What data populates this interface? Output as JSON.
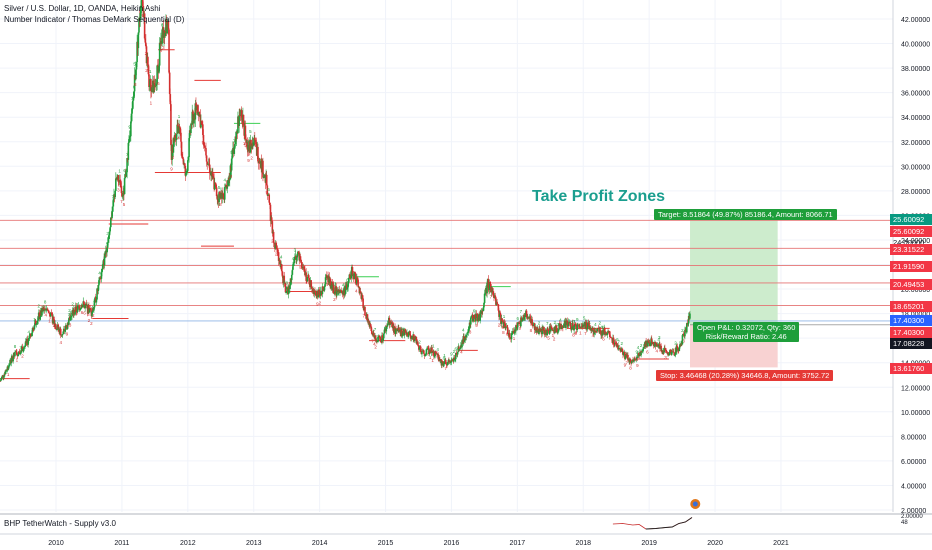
{
  "symbol_title": "Silver / U.S. Dollar, 1D, OANDA, Heikin Ashi",
  "indicator_title": "Number Indicator / Thomas DeMark Sequential (D)",
  "annotation": "Take Profit Zones",
  "target_label": "Target: 8.51864 (49.87%) 85186.4, Amount: 8066.71",
  "position_label_1": "Open P&L: 0.32072, Qty: 360",
  "position_label_2": "Risk/Reward Ratio: 2.46",
  "stop_label": "Stop: 3.46468 (20.28%) 34646.8, Amount: 3752.72",
  "sub_indicator": "BHP TetherWatch - Supply v3.0",
  "sub_axis_labels": [
    "2.00000",
    "48"
  ],
  "colors": {
    "up": "#26a69a",
    "down": "#ef5350",
    "green_bar": "#1e9e3a",
    "red_bar": "#d32f2f",
    "target_fill": "#cdeccd",
    "stop_fill": "#f8d2d2",
    "annotation": "#1a9e8f",
    "tag_green": "#089981",
    "tag_red": "#f23645"
  },
  "price_tags": [
    {
      "value": "25.60092",
      "color": "green"
    },
    {
      "value": "25.60092",
      "color": "red"
    },
    {
      "value": "24.00000",
      "color": "plain"
    },
    {
      "value": "23.31522",
      "color": "red"
    },
    {
      "value": "21.91590",
      "color": "red"
    },
    {
      "value": "20.49453",
      "color": "red"
    },
    {
      "value": "18.65201",
      "color": "red"
    },
    {
      "value": "17.40300",
      "color": "blue"
    },
    {
      "value": "17.40300",
      "color": "red"
    },
    {
      "value": "17.08228",
      "color": "dark"
    },
    {
      "value": "13.61760",
      "color": "red"
    }
  ],
  "chart_data": {
    "type": "candlestick",
    "ylim": [
      0,
      43.5
    ],
    "y_ticks": [
      "2.00000",
      "4.00000",
      "6.00000",
      "8.00000",
      "10.00000",
      "12.00000",
      "14.00000",
      "16.00000",
      "18.00000",
      "20.00000",
      "22.00000",
      "24.00000",
      "26.00000",
      "28.00000",
      "30.00000",
      "32.00000",
      "34.00000",
      "36.00000",
      "38.00000",
      "40.00000",
      "42.00000"
    ],
    "y_tick_values": [
      2,
      4,
      6,
      8,
      10,
      12,
      14,
      16,
      18,
      20,
      22,
      24,
      26,
      28,
      30,
      32,
      34,
      36,
      38,
      40,
      42
    ],
    "x_ticks": [
      "2010",
      "2011",
      "2012",
      "2013",
      "2014",
      "2015",
      "2016",
      "2017",
      "2018",
      "2019",
      "2020",
      "2021"
    ],
    "x_tick_values": [
      2010,
      2011,
      2012,
      2013,
      2014,
      2015,
      2016,
      2017,
      2018,
      2019,
      2020,
      2021
    ],
    "xlim": [
      2009.15,
      2022.7
    ],
    "price_path": [
      [
        2009.15,
        12.5
      ],
      [
        2009.35,
        14.5
      ],
      [
        2009.55,
        15.5
      ],
      [
        2009.7,
        17.5
      ],
      [
        2009.85,
        18.5
      ],
      [
        2010.0,
        17.0
      ],
      [
        2010.1,
        16.3
      ],
      [
        2010.25,
        18.0
      ],
      [
        2010.4,
        18.8
      ],
      [
        2010.55,
        18.0
      ],
      [
        2010.7,
        21.5
      ],
      [
        2010.8,
        24.5
      ],
      [
        2010.92,
        29.0
      ],
      [
        2011.02,
        27.5
      ],
      [
        2011.15,
        34.0
      ],
      [
        2011.3,
        44.5
      ],
      [
        2011.4,
        37.0
      ],
      [
        2011.5,
        36.0
      ],
      [
        2011.6,
        40.5
      ],
      [
        2011.7,
        41.5
      ],
      [
        2011.75,
        31.0
      ],
      [
        2011.85,
        33.5
      ],
      [
        2011.97,
        29.0
      ],
      [
        2012.05,
        33.5
      ],
      [
        2012.15,
        35.0
      ],
      [
        2012.3,
        30.5
      ],
      [
        2012.45,
        27.5
      ],
      [
        2012.6,
        28.0
      ],
      [
        2012.72,
        32.5
      ],
      [
        2012.8,
        34.5
      ],
      [
        2012.92,
        31.5
      ],
      [
        2013.0,
        32.0
      ],
      [
        2013.1,
        30.5
      ],
      [
        2013.2,
        28.5
      ],
      [
        2013.3,
        24.0
      ],
      [
        2013.4,
        22.0
      ],
      [
        2013.5,
        19.5
      ],
      [
        2013.65,
        23.0
      ],
      [
        2013.75,
        21.5
      ],
      [
        2013.9,
        20.0
      ],
      [
        2014.0,
        19.5
      ],
      [
        2014.12,
        21.0
      ],
      [
        2014.2,
        20.0
      ],
      [
        2014.35,
        19.5
      ],
      [
        2014.5,
        21.5
      ],
      [
        2014.6,
        20.0
      ],
      [
        2014.75,
        17.0
      ],
      [
        2014.85,
        16.0
      ],
      [
        2014.95,
        16.0
      ],
      [
        2015.05,
        17.5
      ],
      [
        2015.15,
        16.5
      ],
      [
        2015.3,
        16.5
      ],
      [
        2015.45,
        16.0
      ],
      [
        2015.55,
        14.8
      ],
      [
        2015.7,
        15.0
      ],
      [
        2015.85,
        14.0
      ],
      [
        2016.0,
        14.0
      ],
      [
        2016.15,
        15.5
      ],
      [
        2016.3,
        17.5
      ],
      [
        2016.45,
        17.8
      ],
      [
        2016.55,
        20.5
      ],
      [
        2016.65,
        19.5
      ],
      [
        2016.75,
        17.5
      ],
      [
        2016.9,
        16.0
      ],
      [
        2017.0,
        17.0
      ],
      [
        2017.15,
        18.0
      ],
      [
        2017.3,
        16.5
      ],
      [
        2017.45,
        16.6
      ],
      [
        2017.6,
        16.8
      ],
      [
        2017.75,
        17.2
      ],
      [
        2017.9,
        16.8
      ],
      [
        2018.05,
        17.0
      ],
      [
        2018.2,
        16.5
      ],
      [
        2018.35,
        16.5
      ],
      [
        2018.5,
        15.5
      ],
      [
        2018.6,
        14.8
      ],
      [
        2018.7,
        14.2
      ],
      [
        2018.85,
        14.6
      ],
      [
        2018.95,
        15.5
      ],
      [
        2019.05,
        15.7
      ],
      [
        2019.2,
        15.0
      ],
      [
        2019.35,
        14.7
      ],
      [
        2019.45,
        15.2
      ],
      [
        2019.55,
        16.5
      ],
      [
        2019.62,
        18.0
      ]
    ],
    "support_lines": [
      {
        "y": 25.60092,
        "color": "red"
      },
      {
        "y": 23.31522,
        "color": "red"
      },
      {
        "y": 21.9159,
        "color": "red"
      },
      {
        "y": 20.49453,
        "color": "red"
      },
      {
        "y": 18.65201,
        "color": "red"
      },
      {
        "y": 17.403,
        "color": "blue"
      }
    ],
    "position": {
      "x_start": 2019.62,
      "x_end": 2020.95,
      "entry": 17.08228,
      "target": 25.60092,
      "stop": 13.6176
    },
    "supply_line": [
      [
        2018.45,
        0.7
      ],
      [
        2018.6,
        0.75
      ],
      [
        2018.75,
        0.6
      ],
      [
        2018.85,
        0.65
      ],
      [
        2018.95,
        0.2
      ],
      [
        2019.1,
        0.25
      ],
      [
        2019.25,
        0.35
      ],
      [
        2019.35,
        0.4
      ],
      [
        2019.45,
        0.75
      ],
      [
        2019.55,
        0.9
      ],
      [
        2019.65,
        1.35
      ]
    ]
  }
}
